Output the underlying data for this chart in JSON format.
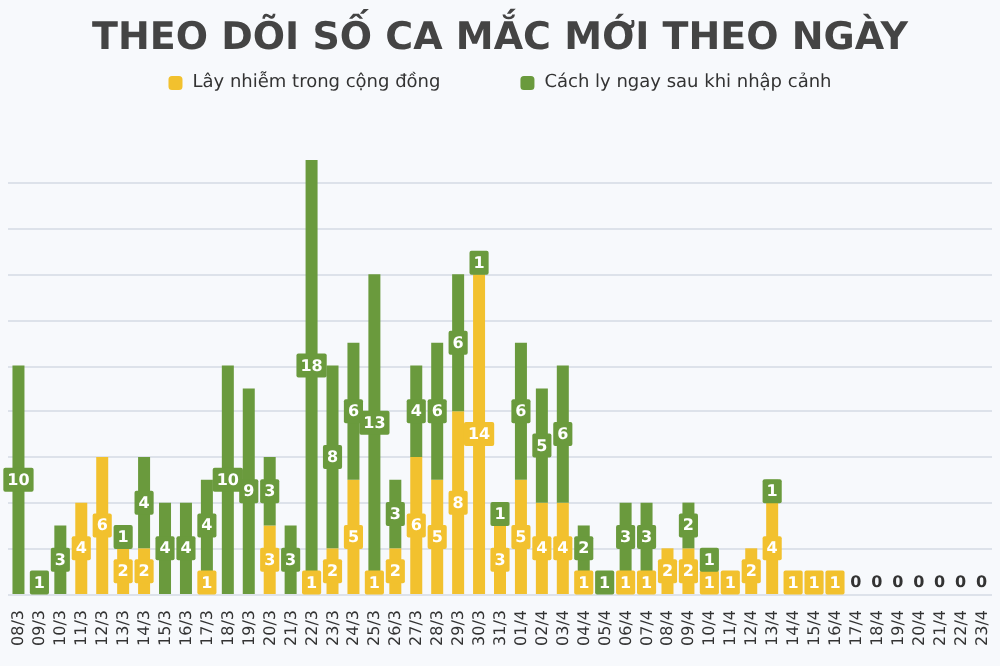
{
  "chart_data": {
    "type": "bar",
    "title": "THEO DÕI SỐ CA MẮC MỚI THEO NGÀY",
    "stacked": true,
    "data_labels": true,
    "legend": "top",
    "grid": "y",
    "tick_labels": "x",
    "categories": [
      "08/3",
      "09/3",
      "10/3",
      "11/3",
      "12/3",
      "13/3",
      "14/3",
      "15/3",
      "16/3",
      "17/3",
      "18/3",
      "19/3",
      "20/3",
      "21/3",
      "22/3",
      "23/3",
      "24/3",
      "25/3",
      "26/3",
      "27/3",
      "28/3",
      "29/3",
      "30/3",
      "31/3",
      "01/4",
      "02/4",
      "03/4",
      "04/4",
      "05/4",
      "06/4",
      "07/4",
      "08/4",
      "09/4",
      "10/4",
      "11/4",
      "12/4",
      "13/4",
      "14/4",
      "15/4",
      "16/4",
      "17/4",
      "18/4",
      "19/4",
      "20/4",
      "21/4",
      "22/4",
      "23/4"
    ],
    "ylim": [
      0,
      19
    ],
    "yticks": [
      {
        "value": 0,
        "label": null
      },
      {
        "value": 2,
        "label": null
      },
      {
        "value": 4,
        "label": null
      },
      {
        "value": 6,
        "label": null
      },
      {
        "value": 8,
        "label": null
      },
      {
        "value": 10,
        "label": null
      },
      {
        "value": 12,
        "label": null
      },
      {
        "value": 14,
        "label": null
      },
      {
        "value": 16,
        "label": null
      },
      {
        "value": 18,
        "label": null
      }
    ],
    "series": [
      {
        "name": "Lây nhiễm trong cộng đồng",
        "color": "#f2c12e",
        "values": [
          null,
          null,
          null,
          4,
          6,
          2,
          2,
          null,
          null,
          1,
          null,
          null,
          3,
          null,
          1,
          2,
          5,
          1,
          2,
          6,
          5,
          8,
          14,
          3,
          5,
          4,
          4,
          1,
          null,
          1,
          1,
          2,
          2,
          1,
          1,
          2,
          4,
          1,
          1,
          1,
          0,
          0,
          0,
          0,
          0,
          0,
          0
        ]
      },
      {
        "name": "Cách ly ngay sau khi nhập cảnh",
        "color": "#6a9a3d",
        "values": [
          10,
          1,
          3,
          null,
          null,
          1,
          4,
          4,
          4,
          4,
          10,
          9,
          3,
          3,
          18,
          8,
          6,
          13,
          3,
          4,
          6,
          6,
          1,
          1,
          6,
          5,
          6,
          2,
          1,
          3,
          3,
          null,
          2,
          1,
          null,
          null,
          1,
          null,
          null,
          null,
          null,
          null,
          null,
          null,
          null,
          null,
          null
        ]
      }
    ]
  }
}
